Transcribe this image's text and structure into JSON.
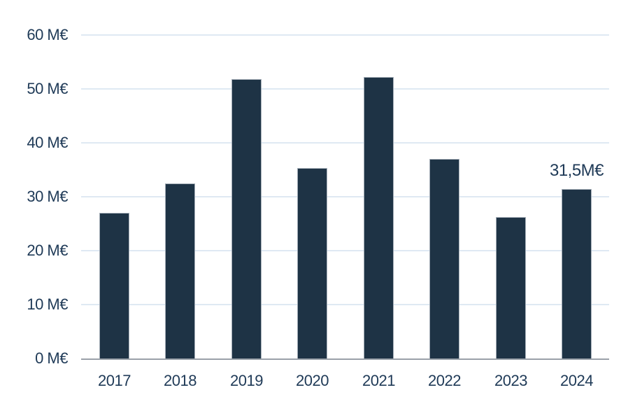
{
  "chart_data": {
    "type": "bar",
    "title": "",
    "xlabel": "",
    "ylabel": "",
    "unit": "M€",
    "categories": [
      "2017",
      "2018",
      "2019",
      "2020",
      "2021",
      "2022",
      "2023",
      "2024"
    ],
    "values": [
      27.1,
      32.6,
      52.0,
      35.5,
      52.3,
      37.2,
      26.3,
      31.5
    ],
    "ylim": [
      0,
      60
    ],
    "y_tick_step": 10,
    "grid": true,
    "legend": false,
    "y_ticks": [
      {
        "value": 0,
        "label": "0 M€"
      },
      {
        "value": 10,
        "label": "10 M€"
      },
      {
        "value": 20,
        "label": "20 M€"
      },
      {
        "value": 30,
        "label": "30 M€"
      },
      {
        "value": 40,
        "label": "40 M€"
      },
      {
        "value": 50,
        "label": "50 M€"
      },
      {
        "value": 60,
        "label": "60 M€"
      }
    ],
    "annotations": [
      {
        "category": "2024",
        "text": "31,5M€"
      }
    ],
    "colors": {
      "bar": "#1e3345",
      "gridline": "#dfe9f3",
      "axis_line": "#9aa1a9",
      "label": "#1f3a57",
      "background": "#ffffff"
    }
  }
}
